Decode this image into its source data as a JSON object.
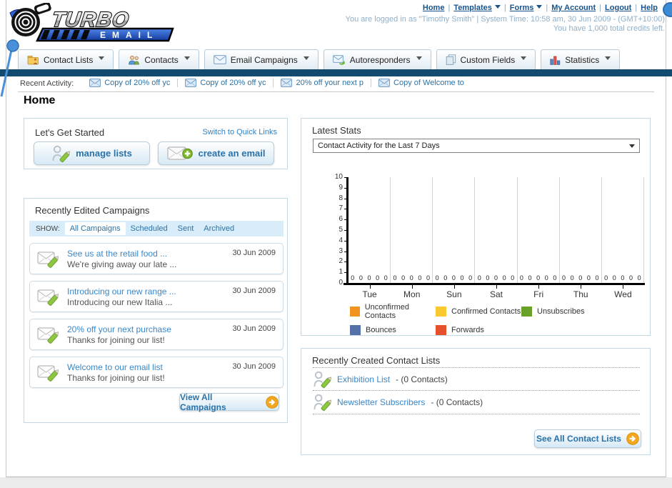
{
  "header": {
    "logo": {
      "title": "TURBO",
      "subtitle": "EMAIL"
    },
    "nav_links": [
      {
        "label": "Home",
        "dropdown": false
      },
      {
        "label": "Templates",
        "dropdown": true
      },
      {
        "label": "Forms",
        "dropdown": true
      },
      {
        "label": "My Account",
        "dropdown": false
      },
      {
        "label": "Logout",
        "dropdown": false
      },
      {
        "label": "Help",
        "dropdown": false
      }
    ],
    "login_info": "You are logged in as \"Timothy Smith\" | System Time: 10:58 am, 30 Jun 2009 - (GMT+10:00)",
    "credits_info": "You have 1,000 total credits left."
  },
  "tabs": [
    {
      "label": "Contact Lists",
      "icon": "contact-lists-folder-icon"
    },
    {
      "label": "Contacts",
      "icon": "contacts-people-icon"
    },
    {
      "label": "Email Campaigns",
      "icon": "email-campaigns-envelope-icon"
    },
    {
      "label": "Autoresponders",
      "icon": "autoresponders-envelope-icon"
    },
    {
      "label": "Custom Fields",
      "icon": "custom-fields-pages-icon"
    },
    {
      "label": "Statistics",
      "icon": "statistics-chart-icon"
    }
  ],
  "recent_activity": {
    "label": "Recent Activity:",
    "items": [
      "Copy of 20% off yc",
      "Copy of 20% off yc",
      "20% off your next p",
      "Copy of Welcome to"
    ]
  },
  "page": {
    "title": "Home"
  },
  "get_started": {
    "title": "Let's Get Started",
    "switch_link": "Switch to Quick Links",
    "buttons": [
      {
        "label": "manage lists",
        "icon": "person-pencil-icon"
      },
      {
        "label": "create an email",
        "icon": "envelope-plus-icon"
      }
    ]
  },
  "campaigns": {
    "title": "Recently Edited Campaigns",
    "show_label": "SHOW:",
    "filters": [
      "All Campaigns",
      "Scheduled",
      "Sent",
      "Archived"
    ],
    "active_filter": "All Campaigns",
    "items": [
      {
        "title": "See us at the retail food ...",
        "subtitle": "We're giving away our late ...",
        "date": "30 Jun 2009"
      },
      {
        "title": "Introducing our new range ...",
        "subtitle": "Introducing our new Italia ...",
        "date": "30 Jun 2009"
      },
      {
        "title": "20% off your next purchase",
        "subtitle": "Thanks for joining our list!",
        "date": "30 Jun 2009"
      },
      {
        "title": "Welcome to our email list",
        "subtitle": "Thanks for joining our list!",
        "date": "30 Jun 2009"
      }
    ],
    "view_all_label": "View All Campaigns"
  },
  "stats": {
    "title": "Latest Stats",
    "dropdown_value": "Contact Activity for the Last 7 Days"
  },
  "chart_data": {
    "type": "bar",
    "title": "Contact Activity for the Last 7 Days",
    "categories": [
      "Tue",
      "Mon",
      "Sun",
      "Sat",
      "Fri",
      "Thu",
      "Wed"
    ],
    "series": [
      {
        "name": "Unconfirmed Contacts",
        "color": "#f0941f",
        "values": [
          0,
          0,
          0,
          0,
          0,
          0,
          0
        ]
      },
      {
        "name": "Confirmed Contacts",
        "color": "#fbc82f",
        "values": [
          0,
          0,
          0,
          0,
          0,
          0,
          0
        ]
      },
      {
        "name": "Unsubscribes",
        "color": "#6aa028",
        "values": [
          0,
          0,
          0,
          0,
          0,
          0,
          0
        ]
      },
      {
        "name": "Bounces",
        "color": "#5471a8",
        "values": [
          0,
          0,
          0,
          0,
          0,
          0,
          0
        ]
      },
      {
        "name": "Forwards",
        "color": "#e5512b",
        "values": [
          0,
          0,
          0,
          0,
          0,
          0,
          0
        ]
      }
    ],
    "ylim": [
      0,
      10
    ],
    "yticks": [
      0,
      1,
      2,
      3,
      4,
      5,
      6,
      7,
      8,
      9,
      10
    ],
    "grid": true,
    "value_labels_shown": true,
    "legend_position": "bottom"
  },
  "contact_lists": {
    "title": "Recently Created Contact Lists",
    "items": [
      {
        "name": "Exhibition List",
        "detail": "- (0 Contacts)",
        "icon": "person-pencil-icon"
      },
      {
        "name": "Newsletter Subscribers",
        "detail": "- (0 Contacts)",
        "icon": "person-pencil-icon"
      }
    ],
    "see_all_label": "See All Contact Lists"
  }
}
